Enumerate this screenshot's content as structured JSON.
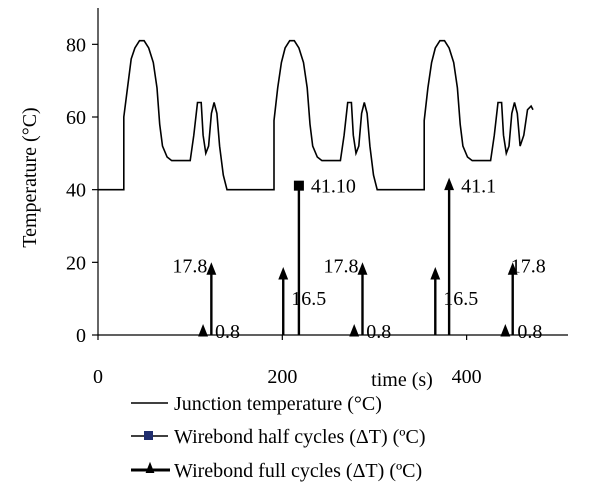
{
  "chart_data": {
    "type": "line",
    "title": "",
    "xlabel": "time (s)",
    "ylabel": "Temperature (°C)",
    "xlim": [
      0,
      510
    ],
    "ylim": [
      0,
      90
    ],
    "x_ticks": [
      0,
      200,
      400
    ],
    "y_ticks": [
      0,
      20,
      40,
      60,
      80
    ],
    "grid": false,
    "legend_position": "bottom",
    "series": [
      {
        "name": "Junction temperature (°C)",
        "kind": "line",
        "color": "#000000",
        "points": [
          [
            0,
            40
          ],
          [
            28,
            40
          ],
          [
            28,
            60
          ],
          [
            32,
            68
          ],
          [
            36,
            76
          ],
          [
            40,
            79
          ],
          [
            45,
            81
          ],
          [
            50,
            81
          ],
          [
            55,
            79
          ],
          [
            60,
            75
          ],
          [
            64,
            68
          ],
          [
            67,
            58
          ],
          [
            70,
            52
          ],
          [
            75,
            49
          ],
          [
            80,
            48
          ],
          [
            90,
            48
          ],
          [
            100,
            48
          ],
          [
            104,
            55
          ],
          [
            108,
            64
          ],
          [
            112,
            64
          ],
          [
            114,
            55
          ],
          [
            117,
            50
          ],
          [
            120,
            52
          ],
          [
            123,
            61
          ],
          [
            126,
            64
          ],
          [
            129,
            61
          ],
          [
            132,
            52
          ],
          [
            136,
            44
          ],
          [
            140,
            40
          ],
          [
            165,
            40
          ],
          [
            191,
            40
          ],
          [
            191,
            59
          ],
          [
            195,
            68
          ],
          [
            199,
            75
          ],
          [
            203,
            79
          ],
          [
            208,
            81
          ],
          [
            213,
            81
          ],
          [
            218,
            79
          ],
          [
            223,
            75
          ],
          [
            227,
            68
          ],
          [
            230,
            58
          ],
          [
            233,
            52
          ],
          [
            238,
            49
          ],
          [
            243,
            48
          ],
          [
            253,
            48
          ],
          [
            263,
            48
          ],
          [
            267,
            55
          ],
          [
            271,
            64
          ],
          [
            275,
            64
          ],
          [
            277,
            55
          ],
          [
            280,
            50
          ],
          [
            283,
            52
          ],
          [
            286,
            61
          ],
          [
            289,
            64
          ],
          [
            292,
            61
          ],
          [
            295,
            52
          ],
          [
            299,
            44
          ],
          [
            303,
            40
          ],
          [
            328,
            40
          ],
          [
            354,
            40
          ],
          [
            354,
            59
          ],
          [
            358,
            68
          ],
          [
            362,
            75
          ],
          [
            366,
            79
          ],
          [
            371,
            81
          ],
          [
            376,
            81
          ],
          [
            381,
            79
          ],
          [
            386,
            75
          ],
          [
            390,
            68
          ],
          [
            393,
            58
          ],
          [
            396,
            52
          ],
          [
            401,
            49
          ],
          [
            406,
            48
          ],
          [
            416,
            48
          ],
          [
            426,
            48
          ],
          [
            430,
            55
          ],
          [
            434,
            64
          ],
          [
            438,
            64
          ],
          [
            440,
            55
          ],
          [
            443,
            50
          ],
          [
            446,
            52
          ],
          [
            449,
            61
          ],
          [
            452,
            64
          ],
          [
            455,
            61
          ],
          [
            458,
            52
          ],
          [
            462,
            55
          ],
          [
            466,
            62
          ],
          [
            470,
            63
          ],
          [
            472,
            62
          ]
        ]
      },
      {
        "name": "Wirebond half cycles (ΔT) (ºC)",
        "kind": "stem",
        "color": "#1f2d6e",
        "marker": "square",
        "points": [
          [
            218,
            41.1
          ]
        ]
      },
      {
        "name": "Wirebond full cycles (ΔT) (ºC)",
        "kind": "stem",
        "color": "#000000",
        "marker": "triangle",
        "points": [
          [
            114,
            0.8
          ],
          [
            123,
            17.8
          ],
          [
            201,
            16.5
          ],
          [
            278,
            0.8
          ],
          [
            287,
            17.8
          ],
          [
            366,
            16.5
          ],
          [
            381,
            41.1
          ],
          [
            442,
            0.8
          ],
          [
            450,
            17.8
          ]
        ]
      }
    ],
    "annotations": [
      {
        "text": "17.8",
        "x": 123,
        "y": 17.8
      },
      {
        "text": "16.5",
        "x": 201,
        "y": 16.5
      },
      {
        "text": "41.10",
        "x": 218,
        "y": 41.1
      },
      {
        "text": "0.8",
        "x": 114,
        "y": 0.8
      },
      {
        "text": "17.8",
        "x": 287,
        "y": 17.8
      },
      {
        "text": "16.5",
        "x": 366,
        "y": 16.5
      },
      {
        "text": "41.1",
        "x": 381,
        "y": 41.1
      },
      {
        "text": "0.8",
        "x": 278,
        "y": 0.8
      },
      {
        "text": "17.8",
        "x": 450,
        "y": 17.8
      },
      {
        "text": "0.8",
        "x": 442,
        "y": 0.8
      }
    ],
    "legend": [
      "Junction temperature (°C)",
      "Wirebond half cycles (ΔT) (ºC)",
      "Wirebond full cycles (ΔT) (ºC)"
    ]
  }
}
